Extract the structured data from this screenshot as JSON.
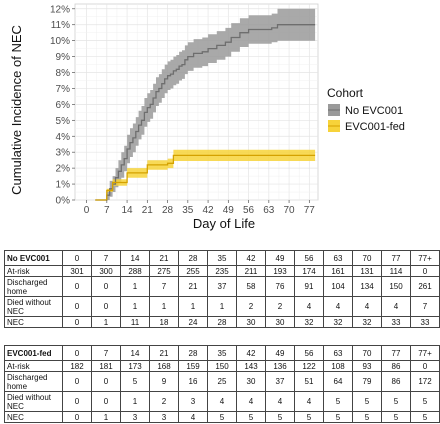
{
  "chart_data": {
    "type": "line",
    "xlabel": "Day of Life",
    "ylabel": "Cumulative Incidence of NEC",
    "xlim": [
      -4,
      80
    ],
    "ylim": [
      0,
      12.3
    ],
    "x_ticks": [
      0,
      7,
      14,
      21,
      28,
      35,
      42,
      49,
      56,
      63,
      70,
      77
    ],
    "y_ticks": [
      0,
      1,
      2,
      3,
      4,
      5,
      6,
      7,
      8,
      9,
      10,
      11,
      12
    ],
    "y_tick_labels": [
      "0%",
      "1%",
      "2%",
      "3%",
      "4%",
      "5%",
      "6%",
      "7%",
      "8%",
      "9%",
      "10%",
      "11%",
      "12%"
    ],
    "grid": true,
    "legend": {
      "title": "Cohort",
      "placement": "right"
    },
    "series": [
      {
        "name": "No EVC001",
        "color": "#6e6e6e",
        "band_color": "#9a9a9a",
        "x": [
          3,
          7,
          8,
          9,
          10,
          11,
          12,
          13,
          14,
          15,
          16,
          17,
          18,
          19,
          20,
          21,
          22,
          23,
          24,
          25,
          26,
          27,
          28,
          29,
          30,
          31,
          32,
          33,
          34,
          35,
          37,
          40,
          42,
          45,
          48,
          50,
          53,
          56,
          64,
          66,
          70,
          77,
          79
        ],
        "y": [
          0,
          0.3,
          0.7,
          1.0,
          1.4,
          1.8,
          2.2,
          2.6,
          3.2,
          3.6,
          3.9,
          4.3,
          4.7,
          5.0,
          5.5,
          5.8,
          6.0,
          6.4,
          6.8,
          7.0,
          7.3,
          7.6,
          7.8,
          7.9,
          8.1,
          8.2,
          8.4,
          8.5,
          8.8,
          9.0,
          9.2,
          9.3,
          9.5,
          9.7,
          9.9,
          10.2,
          10.5,
          10.7,
          10.8,
          11.0,
          11.0,
          11.0,
          11.0
        ],
        "lower": [
          0,
          0.0,
          0.2,
          0.5,
          0.8,
          1.1,
          1.4,
          1.8,
          2.3,
          2.7,
          3.0,
          3.4,
          3.8,
          4.1,
          4.6,
          4.9,
          5.1,
          5.5,
          5.9,
          6.1,
          6.4,
          6.7,
          6.9,
          7.0,
          7.2,
          7.3,
          7.5,
          7.6,
          7.9,
          8.1,
          8.3,
          8.4,
          8.6,
          8.8,
          9.0,
          9.3,
          9.6,
          9.8,
          9.9,
          10.0,
          10.0,
          10.0,
          10.0
        ],
        "upper": [
          0,
          0.6,
          1.2,
          1.5,
          2.0,
          2.5,
          3.0,
          3.4,
          4.1,
          4.5,
          4.8,
          5.2,
          5.6,
          5.9,
          6.4,
          6.7,
          6.9,
          7.3,
          7.7,
          7.9,
          8.2,
          8.5,
          8.7,
          8.8,
          9.0,
          9.1,
          9.3,
          9.4,
          9.7,
          9.9,
          10.1,
          10.2,
          10.4,
          10.6,
          10.8,
          11.1,
          11.4,
          11.6,
          11.7,
          12.0,
          12.0,
          12.0,
          12.0
        ]
      },
      {
        "name": "EVC001-fed",
        "color": "#d4a100",
        "band_color": "#f7d33a",
        "x": [
          3,
          7,
          9,
          14,
          21,
          28,
          30,
          32,
          79
        ],
        "y": [
          0,
          0.6,
          1.1,
          1.7,
          2.2,
          2.3,
          2.8,
          2.8,
          2.8
        ],
        "lower": [
          0,
          0.5,
          0.9,
          1.4,
          1.9,
          2.0,
          2.45,
          2.45,
          2.45
        ],
        "upper": [
          0,
          0.7,
          1.3,
          2.0,
          2.5,
          2.6,
          3.15,
          3.15,
          3.15
        ]
      }
    ]
  },
  "tables": [
    {
      "label": "No EVC001",
      "days": [
        "0",
        "7",
        "14",
        "21",
        "28",
        "35",
        "42",
        "49",
        "56",
        "63",
        "70",
        "77",
        "77+"
      ],
      "rows": [
        {
          "label": "At-risk",
          "values": [
            "301",
            "300",
            "288",
            "275",
            "255",
            "235",
            "211",
            "193",
            "174",
            "161",
            "131",
            "114",
            "0"
          ]
        },
        {
          "label": "Discharged home",
          "values": [
            "0",
            "0",
            "1",
            "7",
            "21",
            "37",
            "58",
            "76",
            "91",
            "104",
            "134",
            "150",
            "261"
          ]
        },
        {
          "label": "Died without NEC",
          "values": [
            "0",
            "0",
            "1",
            "1",
            "1",
            "1",
            "2",
            "2",
            "4",
            "4",
            "4",
            "4",
            "7"
          ]
        },
        {
          "label": "NEC",
          "values": [
            "0",
            "1",
            "11",
            "18",
            "24",
            "28",
            "30",
            "30",
            "32",
            "32",
            "32",
            "33",
            "33"
          ]
        }
      ]
    },
    {
      "label": "EVC001-fed",
      "days": [
        "0",
        "7",
        "14",
        "21",
        "28",
        "35",
        "42",
        "49",
        "56",
        "63",
        "70",
        "77",
        "77+"
      ],
      "rows": [
        {
          "label": "At-risk",
          "values": [
            "182",
            "181",
            "173",
            "168",
            "159",
            "150",
            "143",
            "136",
            "122",
            "108",
            "93",
            "86",
            "0"
          ]
        },
        {
          "label": "Discharged home",
          "values": [
            "0",
            "0",
            "5",
            "9",
            "16",
            "25",
            "30",
            "37",
            "51",
            "64",
            "79",
            "86",
            "172"
          ]
        },
        {
          "label": "Died without NEC",
          "values": [
            "0",
            "0",
            "1",
            "2",
            "3",
            "4",
            "4",
            "4",
            "4",
            "5",
            "5",
            "5",
            "5"
          ]
        },
        {
          "label": "NEC",
          "values": [
            "0",
            "1",
            "3",
            "3",
            "4",
            "5",
            "5",
            "5",
            "5",
            "5",
            "5",
            "5",
            "5"
          ]
        }
      ]
    }
  ]
}
